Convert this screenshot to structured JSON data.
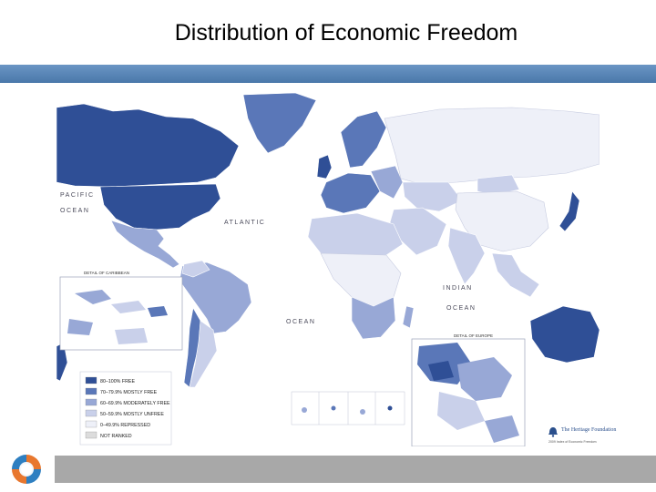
{
  "slide": {
    "title": "Distribution of Economic Freedom"
  },
  "colors": {
    "accent_bar": "#5683b7",
    "bottom_bar": "#a8a8a8",
    "ocean": "#ffffff",
    "free": "#2f4f96",
    "mostly_free": "#5a77b8",
    "moderately_free": "#98a8d6",
    "mostly_unfree": "#c9d0ea",
    "repressed": "#eef0f8",
    "not_ranked": "#dcdcdc"
  },
  "map": {
    "ocean_labels": {
      "pacific_1": "PACIFIC",
      "pacific_2": "OCEAN",
      "atlantic": "ATLANTIC",
      "ocean_south": "OCEAN",
      "indian_1": "INDIAN",
      "indian_2": "OCEAN"
    },
    "insets": {
      "caribbean_title": "DETAIL OF CARIBBEAN",
      "europe_title": "DETAIL OF EUROPE"
    },
    "legend": [
      {
        "label": "80–100% FREE",
        "color": "#2f4f96"
      },
      {
        "label": "70–79.9% MOSTLY FREE",
        "color": "#5a77b8"
      },
      {
        "label": "60–69.9% MODERATELY FREE",
        "color": "#98a8d6"
      },
      {
        "label": "50–59.9% MOSTLY UNFREE",
        "color": "#c9d0ea"
      },
      {
        "label": "0–49.9% REPRESSED",
        "color": "#eef0f8"
      },
      {
        "label": "NOT RANKED",
        "color": "#dcdcdc"
      }
    ],
    "publisher": {
      "name": "The Heritage Foundation",
      "sub": "2009 Index of Economic Freedom"
    }
  },
  "logo": {
    "icon": "globe-swirl-icon"
  }
}
